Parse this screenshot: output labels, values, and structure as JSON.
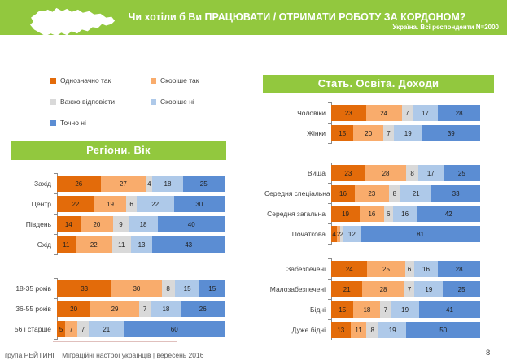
{
  "header": {
    "title": "Чи хотіли б Ви ПРАЦЮВАТИ / ОТРИМАТИ РОБОТУ ЗА КОРДОНОМ?",
    "subtitle": "Україна. Всі респонденти N=2000"
  },
  "colors": {
    "banner_green": "#92C83E",
    "definitely_yes": "#E36B0A",
    "rather_yes": "#F9AC6C",
    "hard_to_say": "#D9D9D9",
    "rather_no": "#AEC9E9",
    "definitely_no": "#5B8DD3"
  },
  "legend": {
    "items": [
      {
        "label": "Однозначно так",
        "color": "#E36B0A"
      },
      {
        "label": "Скоріше так",
        "color": "#F9AC6C"
      },
      {
        "label": "Важко відповісти",
        "color": "#D9D9D9"
      },
      {
        "label": "Скоріше ні",
        "color": "#AEC9E9"
      },
      {
        "label": "Точно ні",
        "color": "#5B8DD3"
      }
    ]
  },
  "chart_data": {
    "type": "bar",
    "orientation": "horizontal-stacked",
    "values_unit": "%",
    "xlim": [
      0,
      100
    ],
    "series_names": [
      "Однозначно так",
      "Скоріше так",
      "Важко відповісти",
      "Скоріше ні",
      "Точно ні"
    ],
    "series_colors": [
      "#E36B0A",
      "#F9AC6C",
      "#D9D9D9",
      "#AEC9E9",
      "#5B8DD3"
    ],
    "panels": [
      {
        "title": "Регіони. Вік",
        "groups": [
          {
            "name": "regions",
            "rows": [
              {
                "label": "Захід",
                "values": [
                  26,
                  27,
                  4,
                  18,
                  25
                ]
              },
              {
                "label": "Центр",
                "values": [
                  22,
                  19,
                  6,
                  22,
                  30
                ]
              },
              {
                "label": "Південь",
                "values": [
                  14,
                  20,
                  9,
                  18,
                  40
                ]
              },
              {
                "label": "Схід",
                "values": [
                  11,
                  22,
                  11,
                  13,
                  43
                ]
              }
            ]
          },
          {
            "name": "age",
            "rows": [
              {
                "label": "18-35 років",
                "values": [
                  33,
                  30,
                  8,
                  15,
                  15
                ]
              },
              {
                "label": "36-55 років",
                "values": [
                  20,
                  29,
                  7,
                  18,
                  26
                ]
              },
              {
                "label": "56 і старше",
                "values": [
                  5,
                  7,
                  7,
                  21,
                  60
                ]
              }
            ]
          }
        ]
      },
      {
        "title": "Стать. Освіта. Доходи",
        "groups": [
          {
            "name": "gender",
            "rows": [
              {
                "label": "Чоловіки",
                "values": [
                  23,
                  24,
                  7,
                  17,
                  28
                ]
              },
              {
                "label": "Жінки",
                "values": [
                  15,
                  20,
                  7,
                  19,
                  39
                ]
              }
            ]
          },
          {
            "name": "education",
            "rows": [
              {
                "label": "Вища",
                "values": [
                  23,
                  28,
                  8,
                  17,
                  25
                ]
              },
              {
                "label": "Середня спеціальна",
                "values": [
                  16,
                  23,
                  8,
                  21,
                  33
                ]
              },
              {
                "label": "Середня загальна",
                "values": [
                  19,
                  16,
                  6,
                  16,
                  42
                ]
              },
              {
                "label": "Початкова",
                "values": [
                  4,
                  2,
                  2,
                  12,
                  81
                ]
              }
            ]
          },
          {
            "name": "income",
            "rows": [
              {
                "label": "Забезпечені",
                "values": [
                  24,
                  25,
                  6,
                  16,
                  28
                ]
              },
              {
                "label": "Малозабезпечені",
                "values": [
                  21,
                  28,
                  7,
                  19,
                  25
                ]
              },
              {
                "label": "Бідні",
                "values": [
                  15,
                  18,
                  7,
                  19,
                  41
                ]
              },
              {
                "label": "Дуже бідні",
                "values": [
                  13,
                  11,
                  8,
                  19,
                  50
                ]
              }
            ]
          }
        ]
      }
    ]
  },
  "footer": {
    "source": "група РЕЙТИНГ  |  Міграційні настрої українців  |  вересень 2016",
    "page": "8"
  }
}
